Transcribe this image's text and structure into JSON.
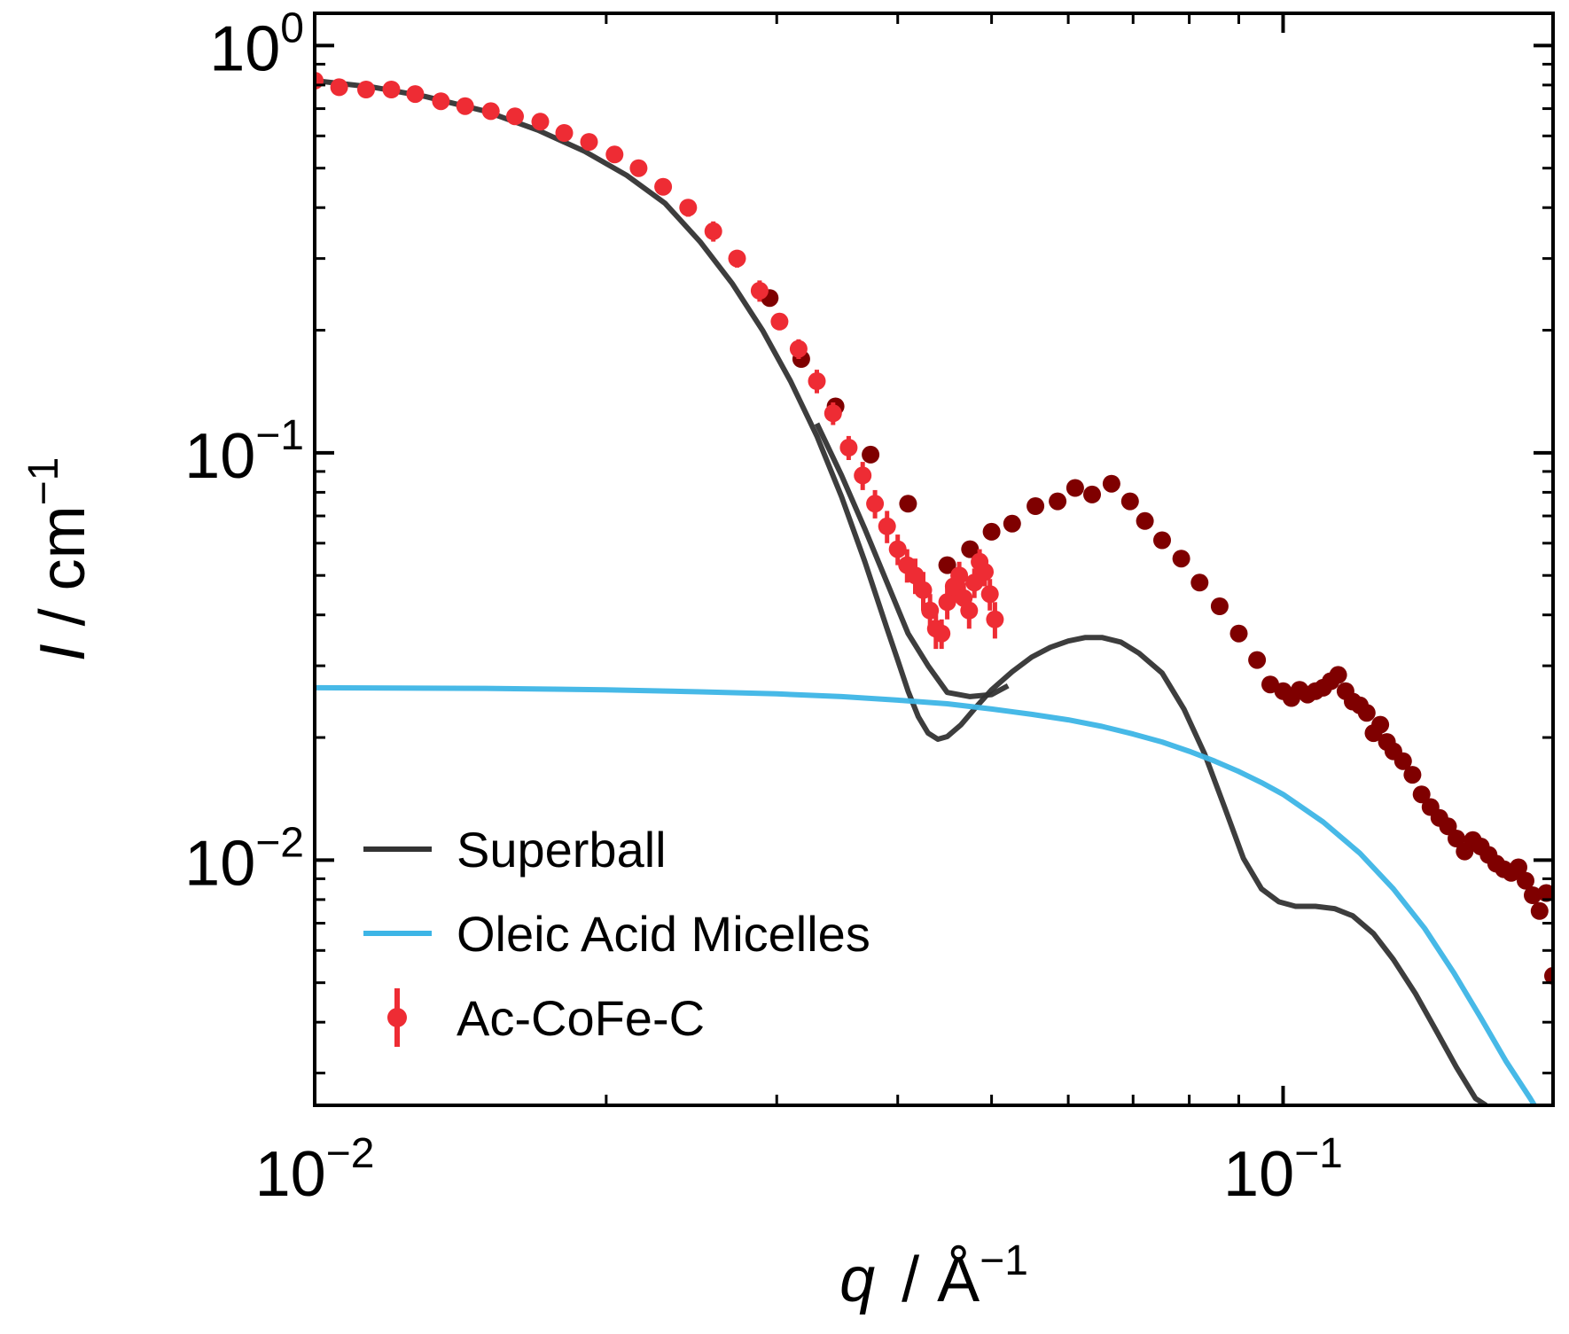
{
  "chart_data": {
    "type": "scatter",
    "title": "",
    "xlabel": {
      "italic": "q",
      "unit": "Å",
      "exp": "−1"
    },
    "ylabel": {
      "italic": "I",
      "unit": "cm",
      "exp": "−1"
    },
    "xscale": "log",
    "yscale": "log",
    "xlim": [
      0.01,
      0.19
    ],
    "ylim": [
      0.0025,
      1.2
    ],
    "x_ticks": [
      {
        "value": 0.01,
        "base": "10",
        "exp": "−2"
      },
      {
        "value": 0.1,
        "base": "10",
        "exp": "−1"
      }
    ],
    "y_ticks": [
      {
        "value": 1,
        "base": "10",
        "exp": "0"
      },
      {
        "value": 0.1,
        "base": "10",
        "exp": "−1"
      },
      {
        "value": 0.01,
        "base": "10",
        "exp": "−2"
      }
    ],
    "grid": false,
    "legend_position": "lower-left",
    "colors": {
      "superball": "#333333",
      "micelles": "#3db5e6",
      "data_low_q": "#ee2c34",
      "data_high_q": "#7f0000"
    },
    "series": [
      {
        "name": "Superball",
        "kind": "line",
        "points": [
          [
            0.01,
            0.82
          ],
          [
            0.0115,
            0.79
          ],
          [
            0.013,
            0.75
          ],
          [
            0.015,
            0.69
          ],
          [
            0.017,
            0.62
          ],
          [
            0.019,
            0.55
          ],
          [
            0.021,
            0.48
          ],
          [
            0.023,
            0.41
          ],
          [
            0.025,
            0.33
          ],
          [
            0.027,
            0.26
          ],
          [
            0.029,
            0.2
          ],
          [
            0.031,
            0.15
          ],
          [
            0.033,
            0.11
          ],
          [
            0.035,
            0.078
          ],
          [
            0.037,
            0.054
          ],
          [
            0.039,
            0.037
          ],
          [
            0.04,
            0.031
          ],
          [
            0.041,
            0.026
          ],
          [
            0.042,
            0.0225
          ],
          [
            0.043,
            0.0205
          ],
          [
            0.044,
            0.0198
          ],
          [
            0.045,
            0.0201
          ],
          [
            0.0465,
            0.0215
          ],
          [
            0.048,
            0.0235
          ],
          [
            0.05,
            0.0262
          ],
          [
            0.0525,
            0.029
          ],
          [
            0.055,
            0.0315
          ],
          [
            0.0575,
            0.0333
          ],
          [
            0.06,
            0.0345
          ],
          [
            0.0625,
            0.0352
          ],
          [
            0.065,
            0.0352
          ],
          [
            0.068,
            0.0343
          ],
          [
            0.071,
            0.0322
          ],
          [
            0.075,
            0.0288
          ],
          [
            0.079,
            0.0235
          ],
          [
            0.083,
            0.0182
          ],
          [
            0.087,
            0.0135
          ],
          [
            0.091,
            0.0101
          ],
          [
            0.095,
            0.0085
          ],
          [
            0.099,
            0.0079
          ],
          [
            0.103,
            0.0077
          ],
          [
            0.108,
            0.0077
          ],
          [
            0.113,
            0.0076
          ],
          [
            0.118,
            0.0073
          ],
          [
            0.124,
            0.0066
          ],
          [
            0.13,
            0.0057
          ],
          [
            0.137,
            0.0047
          ],
          [
            0.144,
            0.0038
          ],
          [
            0.151,
            0.0031
          ],
          [
            0.158,
            0.0026
          ],
          [
            0.162,
            0.0025
          ]
        ]
      },
      {
        "name": "Superball (second branch)",
        "kind": "line",
        "points": [
          [
            0.033,
            0.118
          ],
          [
            0.035,
            0.088
          ],
          [
            0.037,
            0.065
          ],
          [
            0.039,
            0.048
          ],
          [
            0.041,
            0.036
          ],
          [
            0.043,
            0.03
          ],
          [
            0.045,
            0.0258
          ],
          [
            0.0475,
            0.0252
          ],
          [
            0.05,
            0.0255
          ],
          [
            0.052,
            0.0268
          ]
        ]
      },
      {
        "name": "Oleic Acid Micelles",
        "kind": "line",
        "points": [
          [
            0.01,
            0.0265
          ],
          [
            0.015,
            0.0264
          ],
          [
            0.02,
            0.0262
          ],
          [
            0.025,
            0.0259
          ],
          [
            0.03,
            0.0256
          ],
          [
            0.035,
            0.0252
          ],
          [
            0.04,
            0.0247
          ],
          [
            0.045,
            0.0242
          ],
          [
            0.05,
            0.0235
          ],
          [
            0.055,
            0.0228
          ],
          [
            0.06,
            0.0221
          ],
          [
            0.065,
            0.0213
          ],
          [
            0.07,
            0.0204
          ],
          [
            0.075,
            0.0195
          ],
          [
            0.08,
            0.0185
          ],
          [
            0.085,
            0.0175
          ],
          [
            0.09,
            0.0165
          ],
          [
            0.095,
            0.0155
          ],
          [
            0.1,
            0.0145
          ],
          [
            0.11,
            0.0124
          ],
          [
            0.12,
            0.0104
          ],
          [
            0.13,
            0.0085
          ],
          [
            0.14,
            0.0068
          ],
          [
            0.15,
            0.0053
          ],
          [
            0.16,
            0.0041
          ],
          [
            0.17,
            0.0032
          ],
          [
            0.18,
            0.0026
          ],
          [
            0.19,
            0.0021
          ]
        ]
      },
      {
        "name": "Ac-CoFe-C",
        "kind": "scatter_errorbars",
        "points": [
          [
            0.01,
            0.82,
            0.02
          ],
          [
            0.0106,
            0.79,
            0.02
          ],
          [
            0.0113,
            0.78,
            0.02
          ],
          [
            0.012,
            0.78,
            0.02
          ],
          [
            0.0127,
            0.76,
            0.02
          ],
          [
            0.0135,
            0.73,
            0.02
          ],
          [
            0.0143,
            0.71,
            0.02
          ],
          [
            0.0152,
            0.69,
            0.02
          ],
          [
            0.0161,
            0.67,
            0.02
          ],
          [
            0.0171,
            0.65,
            0.02
          ],
          [
            0.0181,
            0.61,
            0.02
          ],
          [
            0.0192,
            0.58,
            0.02
          ],
          [
            0.0204,
            0.54,
            0.02
          ],
          [
            0.0216,
            0.5,
            0.02
          ],
          [
            0.0229,
            0.45,
            0.02
          ],
          [
            0.0243,
            0.4,
            0.02
          ],
          [
            0.0258,
            0.35,
            0.02
          ],
          [
            0.0273,
            0.3,
            0.015
          ],
          [
            0.0288,
            0.25,
            0.015
          ],
          [
            0.0302,
            0.21,
            0.01
          ],
          [
            0.0316,
            0.18,
            0.01
          ],
          [
            0.033,
            0.15,
            0.01
          ],
          [
            0.0343,
            0.125,
            0.008
          ],
          [
            0.0356,
            0.103,
            0.007
          ],
          [
            0.0368,
            0.088,
            0.007
          ],
          [
            0.0379,
            0.075,
            0.006
          ],
          [
            0.039,
            0.066,
            0.006
          ],
          [
            0.04,
            0.058,
            0.005
          ],
          [
            0.0409,
            0.053,
            0.005
          ],
          [
            0.0417,
            0.05,
            0.005
          ],
          [
            0.0425,
            0.046,
            0.005
          ],
          [
            0.0432,
            0.041,
            0.004
          ],
          [
            0.0438,
            0.037,
            0.004
          ],
          [
            0.0444,
            0.036,
            0.003
          ],
          [
            0.045,
            0.043,
            0.004
          ],
          [
            0.0457,
            0.047,
            0.004
          ],
          [
            0.0463,
            0.05,
            0.004
          ],
          [
            0.0468,
            0.044,
            0.004
          ],
          [
            0.0474,
            0.041,
            0.004
          ],
          [
            0.048,
            0.048,
            0.004
          ],
          [
            0.0486,
            0.054,
            0.004
          ],
          [
            0.0492,
            0.051,
            0.004
          ],
          [
            0.0498,
            0.045,
            0.004
          ],
          [
            0.0504,
            0.039,
            0.004
          ]
        ]
      },
      {
        "name": "Ac-CoFe-C (high q)",
        "kind": "scatter",
        "points": [
          [
            0.0295,
            0.24
          ],
          [
            0.0318,
            0.17
          ],
          [
            0.0345,
            0.13
          ],
          [
            0.0375,
            0.099
          ],
          [
            0.041,
            0.075
          ],
          [
            0.045,
            0.053
          ],
          [
            0.0475,
            0.058
          ],
          [
            0.05,
            0.064
          ],
          [
            0.0525,
            0.067
          ],
          [
            0.0555,
            0.074
          ],
          [
            0.0585,
            0.076
          ],
          [
            0.061,
            0.082
          ],
          [
            0.0635,
            0.079
          ],
          [
            0.0665,
            0.084
          ],
          [
            0.0695,
            0.076
          ],
          [
            0.072,
            0.068
          ],
          [
            0.075,
            0.061
          ],
          [
            0.0785,
            0.055
          ],
          [
            0.082,
            0.048
          ],
          [
            0.086,
            0.042
          ],
          [
            0.09,
            0.036
          ],
          [
            0.094,
            0.031
          ],
          [
            0.097,
            0.027
          ],
          [
            0.1,
            0.026
          ],
          [
            0.102,
            0.025
          ],
          [
            0.104,
            0.0262
          ],
          [
            0.106,
            0.0255
          ],
          [
            0.108,
            0.026
          ],
          [
            0.11,
            0.0265
          ],
          [
            0.112,
            0.0275
          ],
          [
            0.114,
            0.0285
          ],
          [
            0.116,
            0.026
          ],
          [
            0.118,
            0.0245
          ],
          [
            0.12,
            0.024
          ],
          [
            0.122,
            0.023
          ],
          [
            0.124,
            0.0205
          ],
          [
            0.126,
            0.0215
          ],
          [
            0.128,
            0.0195
          ],
          [
            0.13,
            0.0185
          ],
          [
            0.133,
            0.0175
          ],
          [
            0.136,
            0.0162
          ],
          [
            0.139,
            0.0145
          ],
          [
            0.142,
            0.0135
          ],
          [
            0.145,
            0.0127
          ],
          [
            0.148,
            0.0121
          ],
          [
            0.151,
            0.0113
          ],
          [
            0.154,
            0.0105
          ],
          [
            0.157,
            0.0112
          ],
          [
            0.16,
            0.0108
          ],
          [
            0.163,
            0.0103
          ],
          [
            0.166,
            0.0098
          ],
          [
            0.169,
            0.0095
          ],
          [
            0.172,
            0.0093
          ],
          [
            0.175,
            0.0096
          ],
          [
            0.178,
            0.0089
          ],
          [
            0.181,
            0.0082
          ],
          [
            0.184,
            0.0075
          ],
          [
            0.187,
            0.0083
          ],
          [
            0.19,
            0.0052
          ]
        ]
      }
    ],
    "legend": [
      {
        "label": "Superball",
        "marker": "line",
        "color": "#333333"
      },
      {
        "label": "Oleic Acid Micelles",
        "marker": "line",
        "color": "#3db5e6"
      },
      {
        "label": "Ac-CoFe-C",
        "marker": "errorbar",
        "color": "#ee2c34"
      }
    ]
  }
}
